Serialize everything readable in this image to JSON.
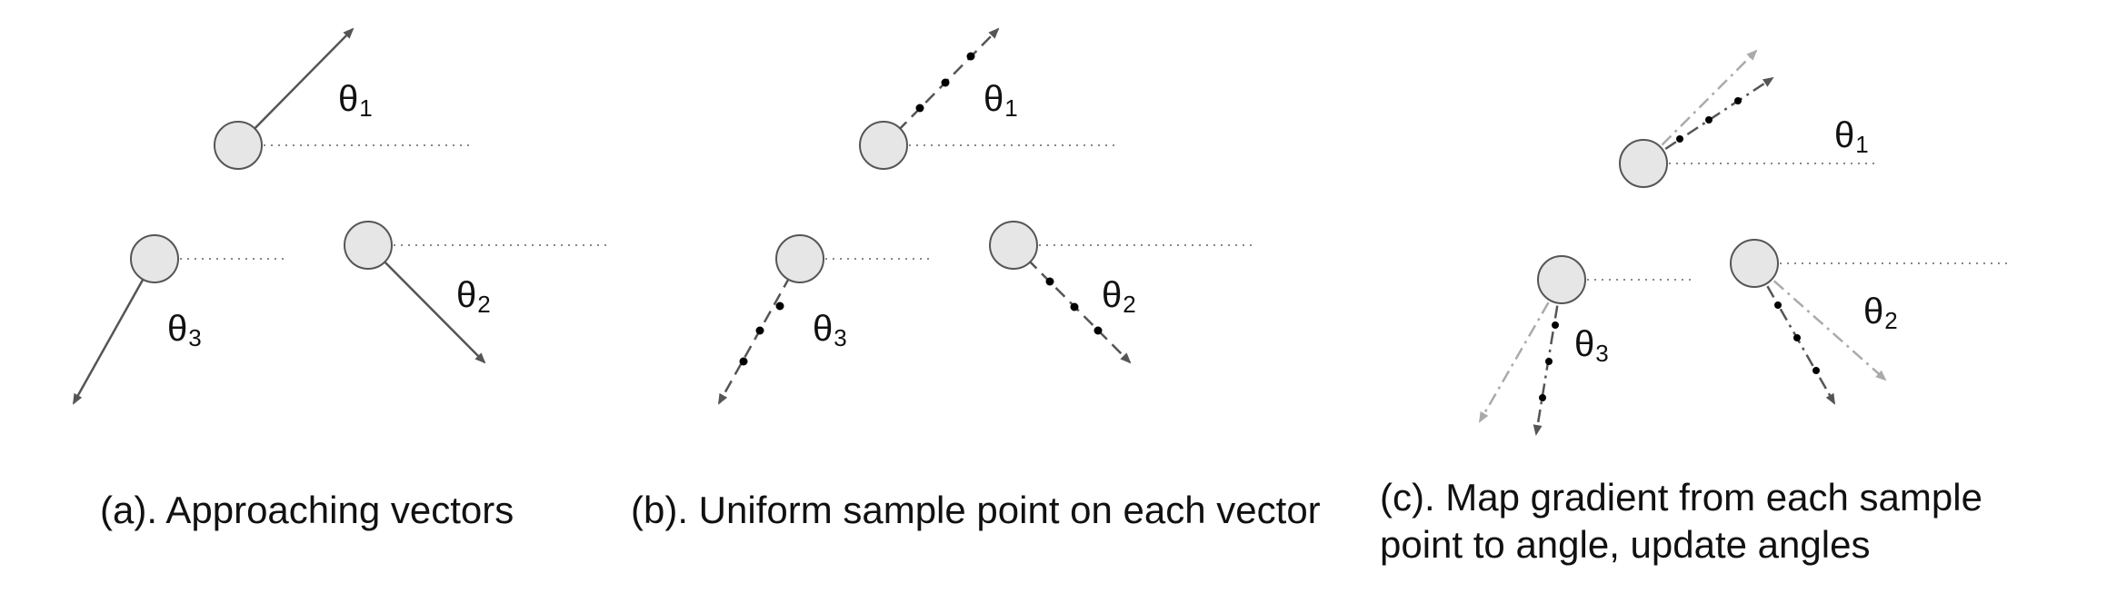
{
  "panels": [
    {
      "caption_lines": [
        "(a). Approaching vectors"
      ],
      "labels": [
        {
          "symbol": "θ",
          "sub": "1"
        },
        {
          "symbol": "θ",
          "sub": "2"
        },
        {
          "symbol": "θ",
          "sub": "3"
        }
      ]
    },
    {
      "caption_lines": [
        "(b). Uniform sample point on each vector"
      ],
      "labels": [
        {
          "symbol": "θ",
          "sub": "1"
        },
        {
          "symbol": "θ",
          "sub": "2"
        },
        {
          "symbol": "θ",
          "sub": "3"
        }
      ]
    },
    {
      "caption_lines": [
        "(c). Map gradient from each sample",
        "point to angle, update angles"
      ],
      "labels": [
        {
          "symbol": "θ",
          "sub": "1"
        },
        {
          "symbol": "θ",
          "sub": "2"
        },
        {
          "symbol": "θ",
          "sub": "3"
        }
      ]
    }
  ],
  "colors": {
    "node_fill": "#e6e6e6",
    "node_stroke": "#555555",
    "arrow": "#555555",
    "arrow_light": "#aaaaaa",
    "dot": "#000000",
    "reference_line": "#888888"
  }
}
